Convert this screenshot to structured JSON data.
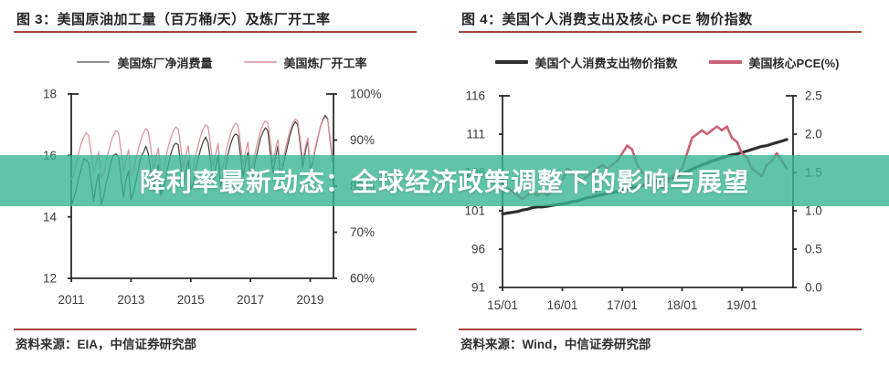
{
  "banner": {
    "text": "降利率最新动态：全球经济政策调整下的影响与展望",
    "bg_color": "rgba(56,181,146,0.8)",
    "text_color": "#ffffff"
  },
  "accent": {
    "rule_color": "#a8453e",
    "axis_color": "#2a2a2a",
    "tick_label_color": "#3a3a3a"
  },
  "chart_data": [
    {
      "type": "line",
      "title": "图 3：美国原油加工量（百万桶/天）及炼厂开工率",
      "source": "资料来源：EIA，中信证券研究部",
      "grid": false,
      "legend_position": "top-center",
      "x_axis": {
        "range": [
          2011,
          2019.78
        ],
        "tick_values": [
          2011,
          2013,
          2015,
          2017,
          2019
        ],
        "tick_labels": [
          "2011",
          "2013",
          "2015",
          "2017",
          "2019"
        ]
      },
      "y_left": {
        "range": [
          12,
          18
        ],
        "tick_values": [
          18,
          16,
          14,
          12
        ],
        "tick_labels": [
          "18",
          "16",
          "14",
          "12"
        ]
      },
      "y_right": {
        "range": [
          60,
          100
        ],
        "tick_values": [
          100,
          90,
          80,
          70,
          60
        ],
        "tick_labels": [
          "100%",
          "90%",
          "80%",
          "70%",
          "60%"
        ]
      },
      "legend": [
        {
          "label": "美国炼厂净消费量",
          "color": "#8e8e8e",
          "thickness": 2
        },
        {
          "label": "美国炼厂开工率",
          "color": "#e4aab4",
          "thickness": 2
        }
      ],
      "series": [
        {
          "name": "美国炼厂净消费量",
          "axis": "left",
          "color": "#474b42",
          "width": 1.3,
          "x_start": 2011.0,
          "x_step": 0.0833333,
          "values": [
            14.35,
            14.6,
            14.9,
            15.3,
            15.55,
            15.9,
            15.85,
            15.75,
            15.15,
            14.5,
            15.05,
            15.4,
            14.4,
            14.65,
            15.1,
            15.4,
            15.8,
            16.0,
            16.05,
            15.95,
            15.3,
            14.65,
            15.2,
            15.5,
            14.55,
            14.8,
            15.15,
            15.55,
            15.95,
            16.1,
            16.3,
            16.05,
            15.45,
            14.85,
            15.35,
            15.7,
            14.7,
            14.95,
            15.3,
            15.7,
            16.05,
            16.3,
            16.4,
            16.35,
            15.65,
            15.0,
            15.5,
            15.85,
            14.9,
            15.1,
            15.55,
            15.9,
            16.2,
            16.45,
            16.6,
            16.4,
            15.8,
            15.15,
            15.6,
            16.0,
            15.0,
            15.25,
            15.6,
            16.05,
            16.35,
            16.6,
            16.7,
            16.65,
            16.0,
            15.3,
            15.75,
            16.1,
            15.2,
            15.4,
            15.85,
            16.2,
            16.55,
            16.75,
            16.9,
            16.8,
            16.05,
            15.45,
            15.9,
            16.3,
            15.4,
            15.6,
            16.0,
            16.35,
            16.7,
            16.95,
            17.1,
            17.0,
            16.35,
            15.6,
            16.1,
            16.5,
            15.55,
            15.75,
            16.2,
            16.55,
            16.9,
            17.15,
            17.3,
            17.2,
            16.5,
            15.8
          ]
        },
        {
          "name": "美国炼厂开工率",
          "axis": "right",
          "color": "#e092a0",
          "width": 1.3,
          "x_start": 2011.0,
          "x_step": 0.0833333,
          "values": [
            81.5,
            82.5,
            85.0,
            87.2,
            89.3,
            90.6,
            91.6,
            91.0,
            87.2,
            82.8,
            85.2,
            87.4,
            82.0,
            82.6,
            85.4,
            87.6,
            89.7,
            91.1,
            92.1,
            91.5,
            87.6,
            83.1,
            85.7,
            87.9,
            82.2,
            83.0,
            85.9,
            88.1,
            90.1,
            91.5,
            92.5,
            91.9,
            88.0,
            83.5,
            86.1,
            88.3,
            82.6,
            83.4,
            86.3,
            88.5,
            90.5,
            92.0,
            92.9,
            92.4,
            88.5,
            83.9,
            86.6,
            88.8,
            83.0,
            83.8,
            86.7,
            88.9,
            90.9,
            92.4,
            93.3,
            92.8,
            88.9,
            84.3,
            87.0,
            89.2,
            83.4,
            84.2,
            87.1,
            89.3,
            91.3,
            92.8,
            93.7,
            93.2,
            89.3,
            84.7,
            87.4,
            89.6,
            83.8,
            84.6,
            87.6,
            89.8,
            91.8,
            93.3,
            94.2,
            93.7,
            89.8,
            85.1,
            87.9,
            90.1,
            84.2,
            85.0,
            88.0,
            90.2,
            92.2,
            93.7,
            94.6,
            94.1,
            90.2,
            85.5,
            88.3,
            90.5,
            84.6,
            85.4,
            88.4,
            90.6,
            92.6,
            94.1,
            95.0,
            94.5,
            90.6,
            85.9
          ]
        }
      ]
    },
    {
      "type": "line",
      "title": "图 4：美国个人消费支出及核心 PCE 物价指数",
      "source": "资料来源：Wind，中信证券研究部",
      "grid": false,
      "legend_position": "top-center",
      "x_axis": {
        "range": [
          2015,
          2019.855
        ],
        "tick_values": [
          2015,
          2016,
          2017,
          2018,
          2019
        ],
        "tick_labels": [
          "15/01",
          "16/01",
          "17/01",
          "18/01",
          "19/01"
        ]
      },
      "y_left": {
        "range": [
          91,
          116
        ],
        "tick_values": [
          116,
          111,
          106,
          101,
          96,
          91
        ],
        "tick_labels": [
          "116",
          "111",
          "106",
          "101",
          "96",
          "91"
        ]
      },
      "y_right": {
        "range": [
          0,
          2.5
        ],
        "tick_values": [
          2.5,
          2.0,
          1.5,
          1.0,
          0.5,
          0.0
        ],
        "tick_labels": [
          "2.5",
          "2.0",
          "1.5",
          "1.0",
          "0.5",
          "0.0"
        ]
      },
      "legend": [
        {
          "label": "美国个人消费支出物价指数",
          "color": "#2e2e2e",
          "thickness": 4
        },
        {
          "label": "美国核心PCE(%)",
          "color": "#cb6375",
          "thickness": 4
        }
      ],
      "series": [
        {
          "name": "美国个人消费支出物价指数",
          "axis": "left",
          "color": "#2e2e2e",
          "width": 3.2,
          "x_start": 2015.0,
          "x_step": 0.0833333,
          "values": [
            100.6,
            100.7,
            100.8,
            100.9,
            101.1,
            101.2,
            101.4,
            101.5,
            101.5,
            101.6,
            101.7,
            101.8,
            101.9,
            102.0,
            102.2,
            102.3,
            102.5,
            102.7,
            102.8,
            103.0,
            103.1,
            103.3,
            103.4,
            103.5,
            103.7,
            103.8,
            104.0,
            104.1,
            104.3,
            104.4,
            104.6,
            104.8,
            105.0,
            105.1,
            105.3,
            105.5,
            105.8,
            106.1,
            106.4,
            106.7,
            107.0,
            107.2,
            107.5,
            107.7,
            107.9,
            108.1,
            108.3,
            108.4,
            108.6,
            108.8,
            109.0,
            109.2,
            109.4,
            109.5,
            109.7,
            109.9,
            110.1,
            110.3
          ]
        },
        {
          "name": "美国核心PCE(%)",
          "axis": "right",
          "color": "#cb6375",
          "width": 2.6,
          "x_start": 2015.0,
          "x_step": 0.0833333,
          "values": [
            1.35,
            1.3,
            1.25,
            1.2,
            1.15,
            1.2,
            1.25,
            1.2,
            1.25,
            1.2,
            1.25,
            1.3,
            1.4,
            1.55,
            1.5,
            1.45,
            1.4,
            1.45,
            1.5,
            1.55,
            1.6,
            1.55,
            1.6,
            1.65,
            1.75,
            1.85,
            1.8,
            1.6,
            1.5,
            1.45,
            1.4,
            1.35,
            1.3,
            1.35,
            1.45,
            1.5,
            1.55,
            1.75,
            1.95,
            2.0,
            2.05,
            2.0,
            2.05,
            2.1,
            2.05,
            2.1,
            1.95,
            1.9,
            1.75,
            1.7,
            1.55,
            1.5,
            1.45,
            1.6,
            1.65,
            1.75,
            1.65,
            1.55
          ]
        }
      ]
    }
  ]
}
